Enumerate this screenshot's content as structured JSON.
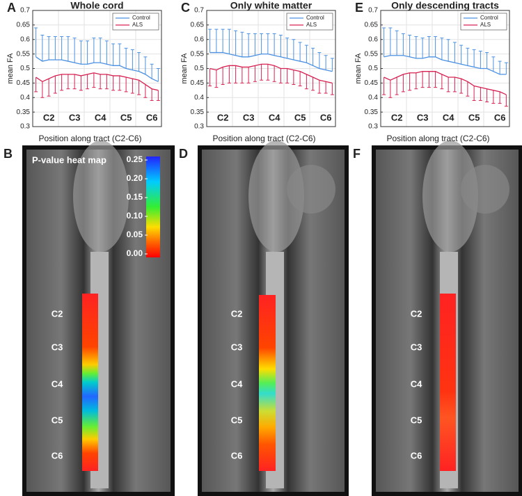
{
  "chart_data": [
    {
      "type": "line",
      "panel_label": "A",
      "title": "Whole cord",
      "y_label": "mean FA",
      "x_label": "Position along tract (C2-C6)",
      "categories": [
        null,
        null,
        "C2",
        null,
        null,
        null,
        "C3",
        null,
        null,
        null,
        "C4",
        null,
        null,
        null,
        "C5",
        null,
        null,
        null,
        "C6",
        null
      ],
      "ylim": [
        0.3,
        0.7
      ],
      "yticks": [
        0.3,
        0.35,
        0.4,
        0.45,
        0.5,
        0.55,
        0.6,
        0.65,
        0.7
      ],
      "grid": true,
      "legend": "top-right",
      "series": [
        {
          "name": "Control",
          "color": "#4a90e2",
          "error_direction": "up",
          "values": [
            0.54,
            0.525,
            0.53,
            0.53,
            0.53,
            0.525,
            0.52,
            0.515,
            0.515,
            0.52,
            0.52,
            0.515,
            0.51,
            0.51,
            0.5,
            0.495,
            0.49,
            0.48,
            0.465,
            0.455
          ],
          "errors": [
            0.1,
            0.09,
            0.08,
            0.08,
            0.08,
            0.085,
            0.085,
            0.08,
            0.08,
            0.085,
            0.085,
            0.08,
            0.075,
            0.075,
            0.07,
            0.07,
            0.065,
            0.06,
            0.05,
            0.045
          ]
        },
        {
          "name": "ALS",
          "color": "#d62050",
          "error_direction": "down",
          "values": [
            0.47,
            0.455,
            0.465,
            0.475,
            0.48,
            0.48,
            0.48,
            0.475,
            0.48,
            0.485,
            0.48,
            0.48,
            0.475,
            0.475,
            0.47,
            0.465,
            0.46,
            0.445,
            0.43,
            0.425
          ],
          "errors": [
            0.05,
            0.055,
            0.06,
            0.06,
            0.055,
            0.05,
            0.05,
            0.05,
            0.05,
            0.05,
            0.05,
            0.05,
            0.05,
            0.05,
            0.05,
            0.05,
            0.05,
            0.045,
            0.04,
            0.035
          ]
        }
      ]
    },
    {
      "type": "line",
      "panel_label": "C",
      "title": "Only white matter",
      "y_label": "mean FA",
      "x_label": "Position along tract (C2-C6)",
      "categories": [
        null,
        null,
        "C2",
        null,
        null,
        null,
        "C3",
        null,
        null,
        null,
        "C4",
        null,
        null,
        null,
        "C5",
        null,
        null,
        null,
        "C6",
        null
      ],
      "ylim": [
        0.3,
        0.7
      ],
      "yticks": [
        0.3,
        0.35,
        0.4,
        0.45,
        0.5,
        0.55,
        0.6,
        0.65,
        0.7
      ],
      "grid": true,
      "legend": "top-right",
      "series": [
        {
          "name": "Control",
          "color": "#4a90e2",
          "error_direction": "up",
          "values": [
            0.555,
            0.555,
            0.555,
            0.55,
            0.545,
            0.54,
            0.54,
            0.545,
            0.55,
            0.55,
            0.545,
            0.54,
            0.535,
            0.53,
            0.525,
            0.52,
            0.51,
            0.5,
            0.495,
            0.49
          ],
          "errors": [
            0.08,
            0.08,
            0.08,
            0.085,
            0.085,
            0.085,
            0.08,
            0.075,
            0.07,
            0.07,
            0.075,
            0.075,
            0.07,
            0.07,
            0.065,
            0.06,
            0.06,
            0.055,
            0.05,
            0.045
          ]
        },
        {
          "name": "ALS",
          "color": "#d62050",
          "error_direction": "down",
          "values": [
            0.5,
            0.495,
            0.505,
            0.51,
            0.51,
            0.505,
            0.505,
            0.51,
            0.515,
            0.515,
            0.51,
            0.5,
            0.5,
            0.495,
            0.49,
            0.48,
            0.47,
            0.46,
            0.455,
            0.45
          ],
          "errors": [
            0.06,
            0.06,
            0.06,
            0.06,
            0.06,
            0.055,
            0.055,
            0.055,
            0.055,
            0.055,
            0.055,
            0.05,
            0.05,
            0.05,
            0.05,
            0.05,
            0.045,
            0.045,
            0.04,
            0.04
          ]
        }
      ]
    },
    {
      "type": "line",
      "panel_label": "E",
      "title": "Only descending tracts",
      "y_label": "mean FA",
      "x_label": "Position along tract (C2-C6)",
      "categories": [
        null,
        null,
        "C2",
        null,
        null,
        null,
        "C3",
        null,
        null,
        null,
        "C4",
        null,
        null,
        null,
        "C5",
        null,
        null,
        null,
        "C6",
        null
      ],
      "ylim": [
        0.3,
        0.7
      ],
      "yticks": [
        0.3,
        0.35,
        0.4,
        0.45,
        0.5,
        0.55,
        0.6,
        0.65,
        0.7
      ],
      "grid": true,
      "legend": "top-right",
      "series": [
        {
          "name": "Control",
          "color": "#4a90e2",
          "error_direction": "up",
          "values": [
            0.54,
            0.545,
            0.545,
            0.545,
            0.54,
            0.535,
            0.535,
            0.54,
            0.54,
            0.53,
            0.525,
            0.52,
            0.515,
            0.51,
            0.505,
            0.5,
            0.5,
            0.49,
            0.48,
            0.48
          ],
          "errors": [
            0.1,
            0.095,
            0.085,
            0.075,
            0.075,
            0.075,
            0.07,
            0.07,
            0.07,
            0.075,
            0.075,
            0.07,
            0.065,
            0.06,
            0.06,
            0.06,
            0.055,
            0.05,
            0.045,
            0.04
          ]
        },
        {
          "name": "ALS",
          "color": "#d62050",
          "error_direction": "down",
          "values": [
            0.47,
            0.46,
            0.47,
            0.48,
            0.485,
            0.485,
            0.49,
            0.49,
            0.49,
            0.48,
            0.47,
            0.47,
            0.465,
            0.455,
            0.44,
            0.435,
            0.43,
            0.425,
            0.42,
            0.41
          ],
          "errors": [
            0.06,
            0.06,
            0.06,
            0.06,
            0.06,
            0.055,
            0.055,
            0.055,
            0.055,
            0.05,
            0.05,
            0.05,
            0.05,
            0.05,
            0.05,
            0.045,
            0.045,
            0.045,
            0.04,
            0.04
          ]
        }
      ]
    }
  ],
  "images": [
    {
      "panel_label": "B",
      "vertebrae": [
        "C2",
        "C3",
        "C4",
        "C5",
        "C6"
      ],
      "heatmap_legend": {
        "title": "P-value heat map",
        "ticks": [
          {
            "value": 0.25,
            "label": "0.25"
          },
          {
            "value": 0.2,
            "label": "0.20"
          },
          {
            "value": 0.15,
            "label": "0.15"
          },
          {
            "value": 0.1,
            "label": "0.10"
          },
          {
            "value": 0.05,
            "label": "0.05"
          },
          {
            "value": 0,
            "label": "0.00"
          }
        ]
      }
    },
    {
      "panel_label": "D",
      "vertebrae": [
        "C2",
        "C3",
        "C4",
        "C5",
        "C6"
      ]
    },
    {
      "panel_label": "F",
      "vertebrae": [
        "C2",
        "C3",
        "C4",
        "C5",
        "C6"
      ]
    }
  ]
}
